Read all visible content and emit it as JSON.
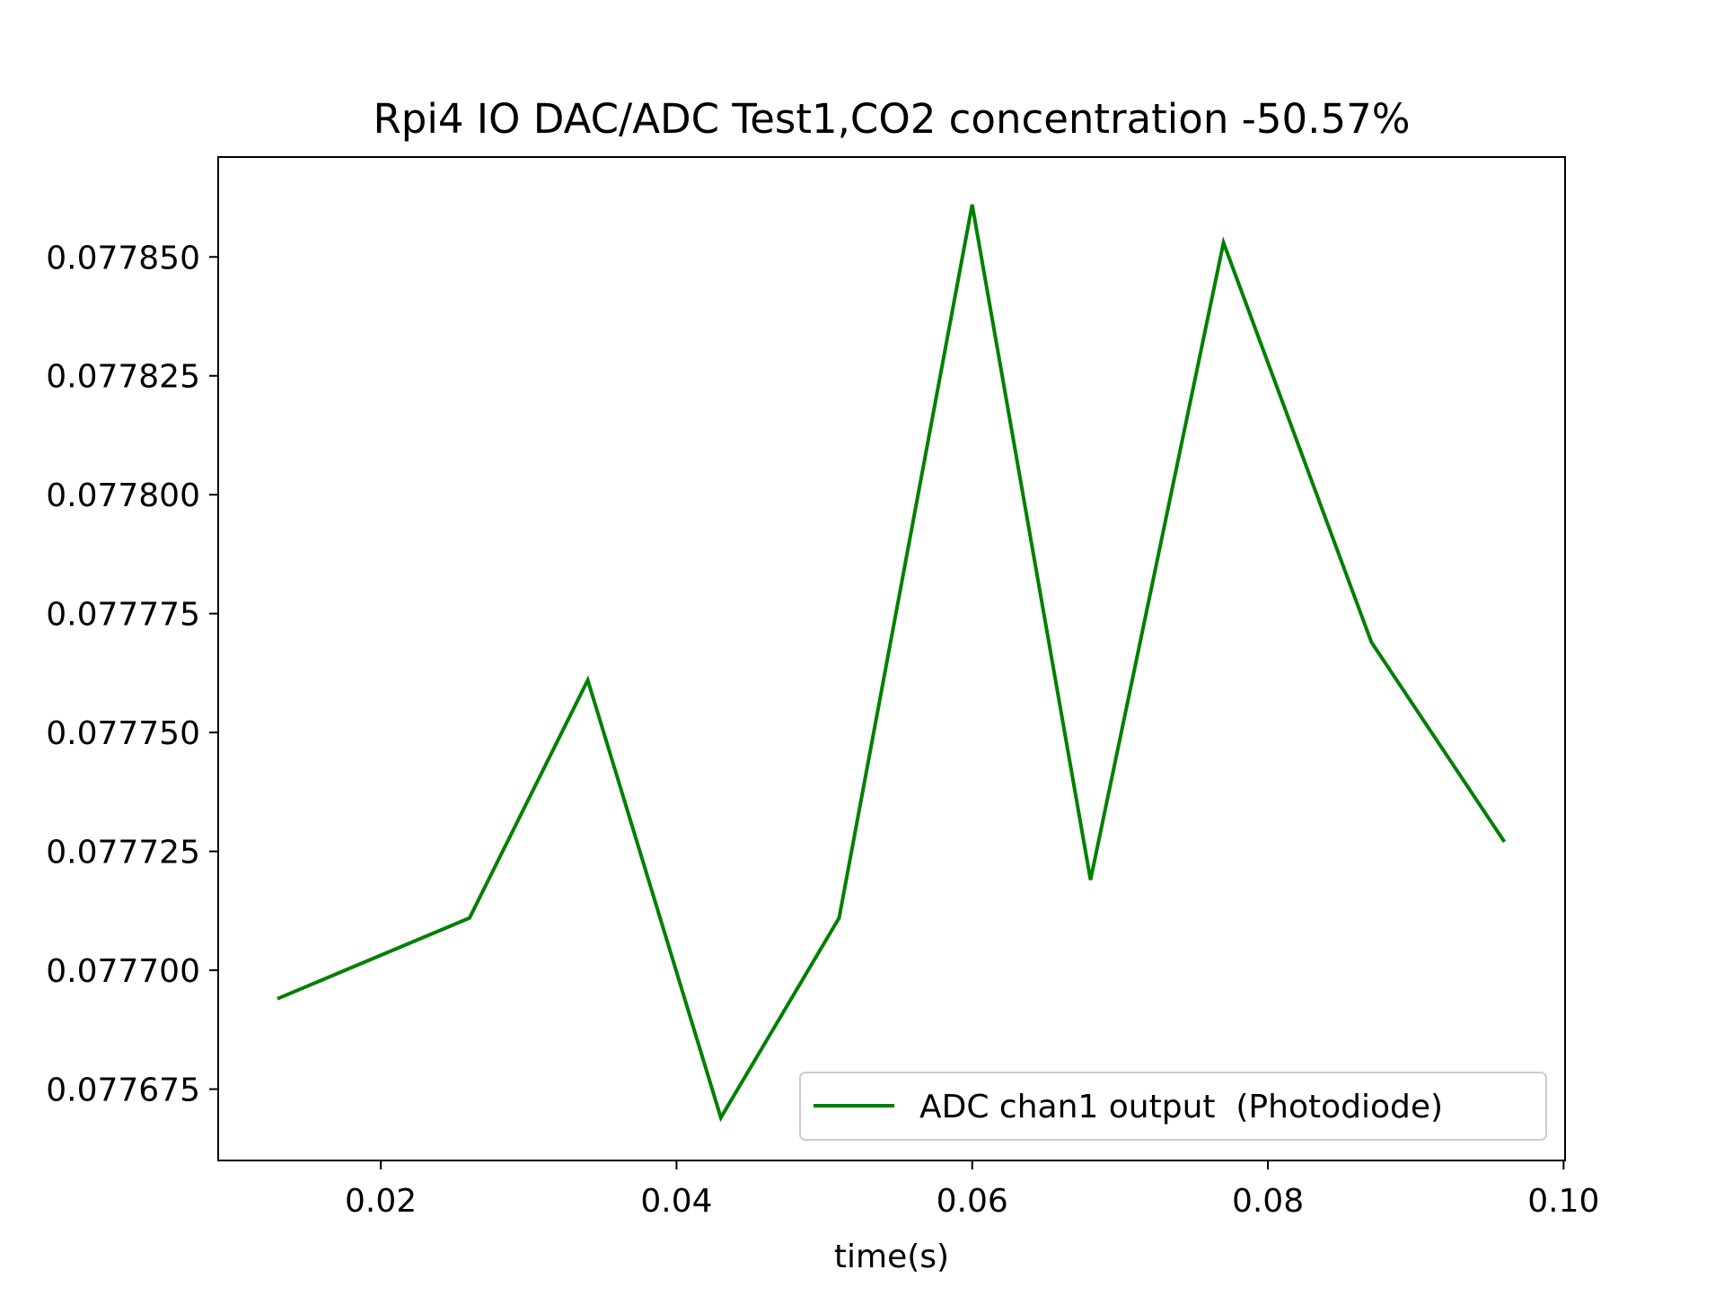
{
  "chart_data": {
    "type": "line",
    "title": "Rpi4 IO DAC/ADC Test1,CO2 concentration -50.57%",
    "xlabel": "time(s)",
    "ylabel": "",
    "xlim": [
      0.009,
      0.1001
    ],
    "ylim": [
      0.07766,
      0.077871
    ],
    "x_ticks": [
      0.02,
      0.04,
      0.06,
      0.08,
      0.1
    ],
    "x_tick_labels": [
      "0.02",
      "0.04",
      "0.06",
      "0.08",
      "0.10"
    ],
    "y_ticks": [
      0.077675,
      0.0777,
      0.077725,
      0.07775,
      0.077775,
      0.0778,
      0.077825,
      0.07785
    ],
    "y_tick_labels": [
      "0.077675",
      "0.077700",
      "0.077725",
      "0.077750",
      "0.077775",
      "0.077800",
      "0.077825",
      "0.077850"
    ],
    "grid": false,
    "legend_position": "lower-right",
    "series": [
      {
        "name": "ADC chan1 output  (Photodiode)",
        "color": "#008000",
        "x": [
          0.013,
          0.026,
          0.034,
          0.043,
          0.051,
          0.06,
          0.068,
          0.077,
          0.087,
          0.096
        ],
        "y": [
          0.077694,
          0.077711,
          0.077761,
          0.077669,
          0.077711,
          0.077861,
          0.077719,
          0.077853,
          0.077769,
          0.077727
        ]
      }
    ]
  }
}
